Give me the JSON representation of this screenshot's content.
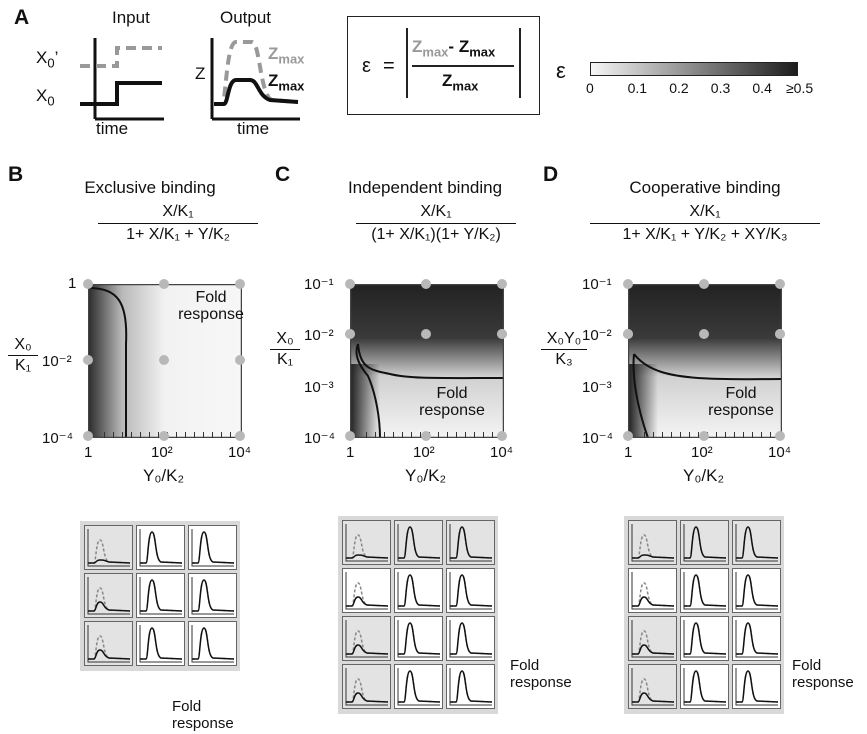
{
  "panel_labels": {
    "A": "A",
    "B": "B",
    "C": "C",
    "D": "D"
  },
  "panelA": {
    "input_title": "Input",
    "output_title": "Output",
    "x0_prime": "X",
    "x0_prime_sub": "0",
    "x0_prime_mark": "’",
    "x0": "X",
    "x0_sub": "0",
    "z_axis": "Z",
    "time_label": "time",
    "zmax_gray": "Z",
    "zmax_gray_sub": "max",
    "zmax_black": "Z",
    "zmax_black_sub": "max",
    "epsilon_symbol": "ε",
    "equation_eq": "=",
    "eq_num_a": "Z",
    "eq_num_a_sub": "max",
    "eq_minus": "-",
    "eq_num_b": "Z",
    "eq_num_b_sub": "max",
    "eq_den": "Z",
    "eq_den_sub": "max",
    "colorbar_symbol": "ε",
    "colorbar_ticks": [
      "0",
      "0.1",
      "0.2",
      "0.3",
      "0.4",
      "≥0.5"
    ]
  },
  "panels": [
    {
      "title": "Exclusive binding",
      "numerator": "X/K₁",
      "denominator": "1+ X/K₁ + Y/K₂",
      "ylabel_num": "X₀",
      "ylabel_den": "K₁",
      "y_ticks": [
        "1",
        "10⁻²",
        "10⁻⁴"
      ],
      "x_ticks": [
        "1",
        "10²",
        "10⁴"
      ],
      "xlabel": "Y₀/K₂",
      "fold_text": "Fold response",
      "grid_fold_text": "Fold response"
    },
    {
      "title": "Independent binding",
      "numerator": "X/K₁",
      "denominator": "(1+ X/K₁)(1+ Y/K₂)",
      "ylabel_num": "X₀",
      "ylabel_den": "K₁",
      "y_ticks": [
        "10⁻¹",
        "10⁻²",
        "10⁻³",
        "10⁻⁴"
      ],
      "x_ticks": [
        "1",
        "10²",
        "10⁴"
      ],
      "xlabel": "Y₀/K₂",
      "fold_text": "Fold response",
      "grid_fold_text": "Fold response"
    },
    {
      "title": "Cooperative binding",
      "numerator": "X/K₁",
      "denominator": "1+ X/K₁ + Y/K₂ + XY/K₃",
      "ylabel_num": "X₀Y₀",
      "ylabel_den": "K₃",
      "y_ticks": [
        "10⁻¹",
        "10⁻²",
        "10⁻³",
        "10⁻⁴"
      ],
      "x_ticks": [
        "1",
        "10²",
        "10⁴"
      ],
      "xlabel": "Y₀/K₂",
      "fold_text": "Fold response",
      "grid_fold_text": "Fold response"
    }
  ]
}
